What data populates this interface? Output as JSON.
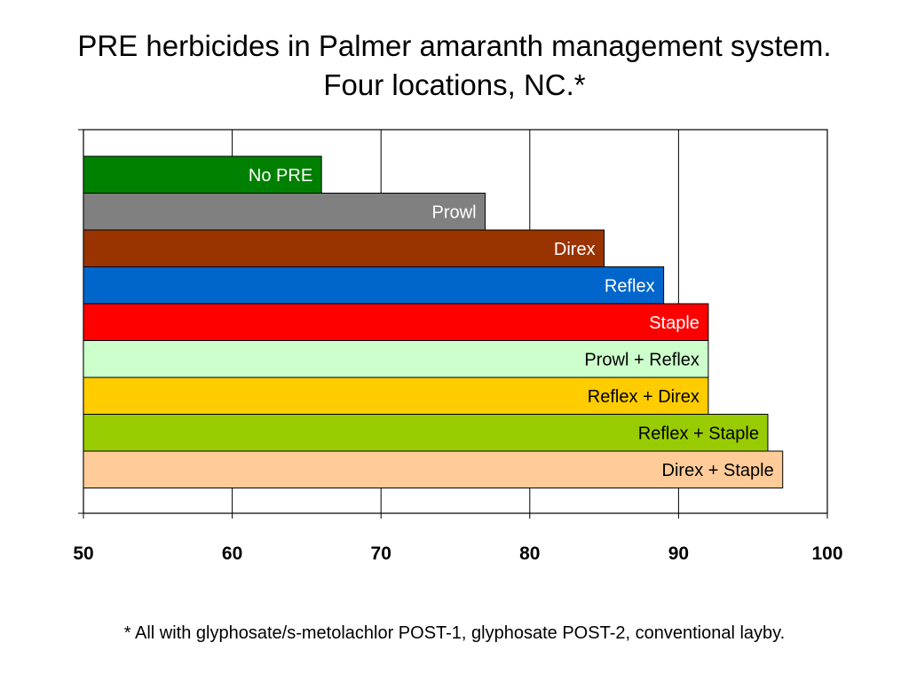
{
  "title": {
    "line1": "PRE herbicides in Palmer amaranth management system.",
    "line2": "Four locations, NC.*"
  },
  "footnote": "* All with glyphosate/s-metolachlor POST-1, glyphosate POST-2, conventional layby.",
  "chart_data": {
    "type": "bar",
    "orientation": "horizontal",
    "title": "PRE herbicides in Palmer amaranth management system. Four locations, NC.*",
    "xlim": [
      50,
      100
    ],
    "xticks": [
      50,
      60,
      70,
      80,
      90,
      100
    ],
    "grid": "vertical",
    "legend": "none",
    "bars": [
      {
        "label": "No PRE",
        "value": 66,
        "color": "#008000",
        "text_color": "#ffffff"
      },
      {
        "label": "Prowl",
        "value": 77,
        "color": "#808080",
        "text_color": "#ffffff"
      },
      {
        "label": "Direx",
        "value": 85,
        "color": "#993300",
        "text_color": "#ffffff"
      },
      {
        "label": "Reflex",
        "value": 89,
        "color": "#0066cc",
        "text_color": "#ffffff"
      },
      {
        "label": "Staple",
        "value": 92,
        "color": "#ff0000",
        "text_color": "#ffffff"
      },
      {
        "label": "Prowl + Reflex",
        "value": 92,
        "color": "#ccffcc",
        "text_color": "#000000"
      },
      {
        "label": "Reflex + Direx",
        "value": 92,
        "color": "#ffcc00",
        "text_color": "#000000"
      },
      {
        "label": "Reflex + Staple",
        "value": 96,
        "color": "#99cc00",
        "text_color": "#000000"
      },
      {
        "label": "Direx + Staple",
        "value": 97,
        "color": "#ffcc99",
        "text_color": "#000000"
      }
    ]
  }
}
